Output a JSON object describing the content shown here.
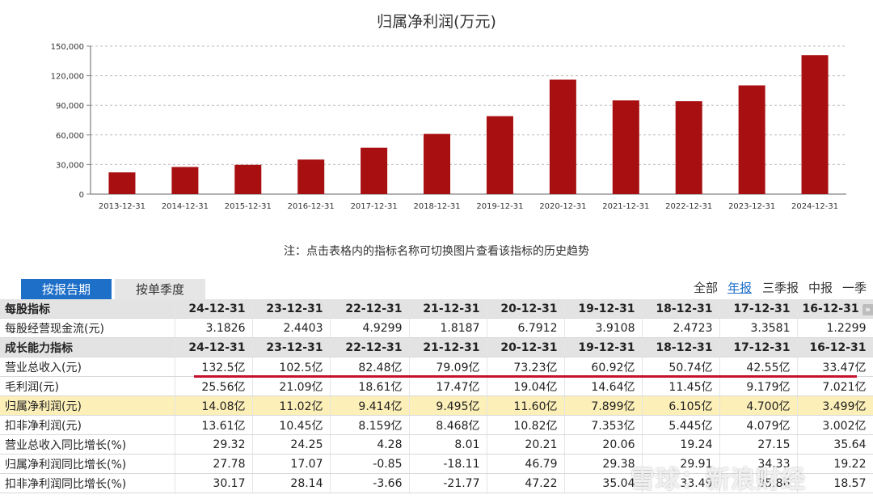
{
  "chart_data": {
    "type": "bar",
    "title": "归属净利润(万元)",
    "categories": [
      "2013-12-31",
      "2014-12-31",
      "2015-12-31",
      "2016-12-31",
      "2017-12-31",
      "2018-12-31",
      "2019-12-31",
      "2020-12-31",
      "2021-12-31",
      "2022-12-31",
      "2023-12-31",
      "2024-12-31"
    ],
    "values": [
      22000,
      27500,
      29700,
      35000,
      47000,
      61000,
      78990,
      116000,
      94950,
      94140,
      110200,
      140800
    ],
    "ylim": [
      0,
      150000
    ],
    "yticks": [
      "0",
      "30,000",
      "60,000",
      "90,000",
      "120,000",
      "150,000"
    ],
    "ytick_values": [
      0,
      30000,
      60000,
      90000,
      120000,
      150000
    ],
    "bar_color": "#a80f10",
    "grid": true
  },
  "note": "注：点击表格内的指标名称可切换图片查看该指标的历史趋势",
  "tabs": {
    "report": "按报告期",
    "quarter": "按单季度"
  },
  "periods": {
    "all": "全部",
    "annual": "年报",
    "q3": "三季报",
    "mid": "中报",
    "q1": "一季报"
  },
  "table": {
    "more_icon": "double-chevron-right-icon",
    "rows": [
      {
        "type": "header",
        "cells": [
          "每股指标",
          "24-12-31",
          "23-12-31",
          "22-12-31",
          "21-12-31",
          "20-12-31",
          "19-12-31",
          "18-12-31",
          "17-12-31",
          "16-12-31"
        ]
      },
      {
        "type": "data",
        "cells": [
          "每股经营现金流(元)",
          "3.1826",
          "2.4403",
          "4.9299",
          "1.8187",
          "6.7912",
          "3.9108",
          "2.4723",
          "3.3581",
          "1.2299"
        ]
      },
      {
        "type": "header",
        "cells": [
          "成长能力指标",
          "24-12-31",
          "23-12-31",
          "22-12-31",
          "21-12-31",
          "20-12-31",
          "19-12-31",
          "18-12-31",
          "17-12-31",
          "16-12-31"
        ]
      },
      {
        "type": "data",
        "cells": [
          "营业总收入(元)",
          "132.5亿",
          "102.5亿",
          "82.48亿",
          "79.09亿",
          "73.23亿",
          "60.92亿",
          "50.74亿",
          "42.55亿",
          "33.47亿"
        ]
      },
      {
        "type": "data",
        "cells": [
          "毛利润(元)",
          "25.56亿",
          "21.09亿",
          "18.61亿",
          "17.47亿",
          "19.04亿",
          "14.64亿",
          "11.45亿",
          "9.179亿",
          "7.021亿"
        ]
      },
      {
        "type": "highlight",
        "cells": [
          "归属净利润(元)",
          "14.08亿",
          "11.02亿",
          "9.414亿",
          "9.495亿",
          "11.60亿",
          "7.899亿",
          "6.105亿",
          "4.700亿",
          "3.499亿"
        ]
      },
      {
        "type": "data",
        "cells": [
          "扣非净利润(元)",
          "13.61亿",
          "10.45亿",
          "8.159亿",
          "8.468亿",
          "10.82亿",
          "7.353亿",
          "5.445亿",
          "4.079亿",
          "3.002亿"
        ]
      },
      {
        "type": "data",
        "cells": [
          "营业总收入同比增长(%)",
          "29.32",
          "24.25",
          "4.28",
          "8.01",
          "20.21",
          "20.06",
          "19.24",
          "27.15",
          "35.64"
        ]
      },
      {
        "type": "data",
        "cells": [
          "归属净利润同比增长(%)",
          "27.78",
          "17.07",
          "-0.85",
          "-18.11",
          "46.79",
          "29.38",
          "29.91",
          "34.33",
          "19.22"
        ]
      },
      {
        "type": "data",
        "cells": [
          "扣非净利润同比增长(%)",
          "30.17",
          "28.14",
          "-3.66",
          "-21.77",
          "47.22",
          "35.04",
          "33.49",
          "35.86",
          "18.57"
        ]
      }
    ]
  },
  "watermark": "雪球：新浪财经"
}
